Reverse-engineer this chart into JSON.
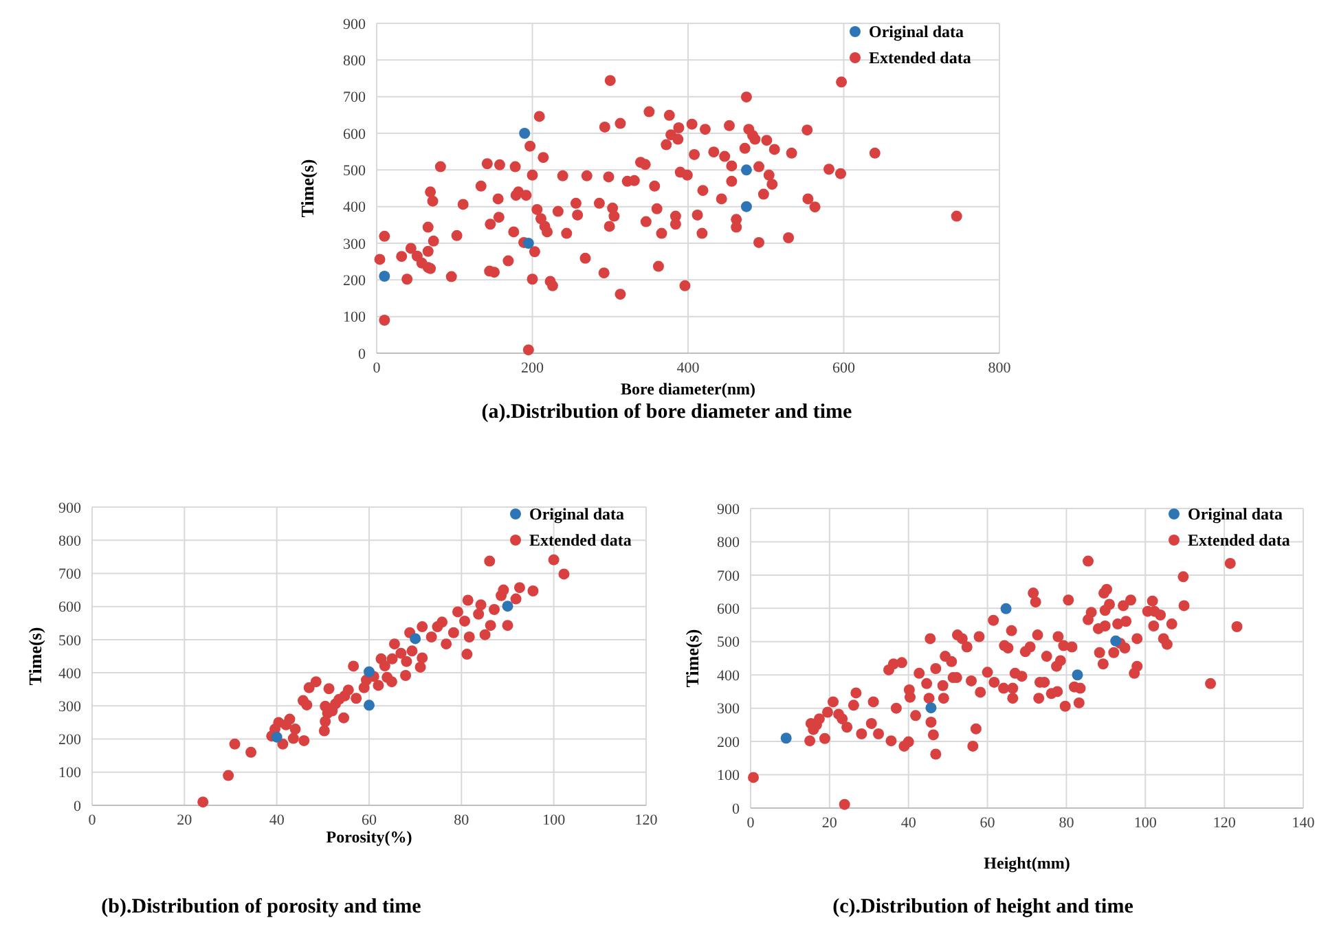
{
  "chart_data": [
    {
      "type": "scatter",
      "title": "(a).Distribution of bore diameter and time",
      "xlabel": "Bore diameter(nm)",
      "ylabel": "Time(s)",
      "xlim": [
        0,
        800
      ],
      "xticks": [
        0,
        200,
        400,
        600,
        800
      ],
      "ylim": [
        0,
        900
      ],
      "yticks": [
        0,
        100,
        200,
        300,
        400,
        500,
        600,
        700,
        800,
        900
      ],
      "grid": true,
      "legend": "top right",
      "marker": "circle",
      "series": [
        {
          "name": "Original data",
          "color": "#2e75b6",
          "x": [
            10,
            190,
            195,
            475,
            475
          ],
          "values": [
            210,
            600,
            300,
            500,
            400
          ]
        },
        {
          "name": "Extended data",
          "color": "#d94141",
          "x": [
            4,
            10,
            10,
            32,
            39,
            44,
            52,
            58,
            66,
            69,
            66,
            66,
            69,
            72,
            73,
            82,
            96,
            103,
            111,
            134,
            142,
            145,
            146,
            151,
            156,
            157,
            158,
            169,
            176,
            178,
            179,
            182,
            192,
            189,
            197,
            195,
            200,
            200,
            203,
            206,
            209,
            211,
            214,
            216,
            219,
            223,
            226,
            233,
            239,
            244,
            256,
            258,
            268,
            270,
            286,
            292,
            293,
            298,
            300,
            299,
            303,
            305,
            313,
            313,
            322,
            331,
            339,
            345,
            346,
            350,
            357,
            360,
            362,
            366,
            372,
            376,
            378,
            384,
            384,
            387,
            388,
            390,
            396,
            399,
            405,
            408,
            412,
            418,
            419,
            422,
            433,
            443,
            447,
            453,
            456,
            456,
            462,
            462,
            473,
            475,
            478,
            483,
            486,
            491,
            491,
            497,
            501,
            504,
            508,
            511,
            529,
            533,
            553,
            554,
            563,
            581,
            596,
            597,
            640,
            745
          ],
          "values": [
            256,
            319,
            90,
            264,
            202,
            286,
            265,
            246,
            234,
            231,
            344,
            278,
            440,
            415,
            306,
            509,
            209,
            321,
            406,
            456,
            517,
            224,
            352,
            221,
            421,
            371,
            514,
            252,
            331,
            509,
            431,
            440,
            431,
            302,
            565,
            9,
            202,
            486,
            277,
            392,
            646,
            367,
            534,
            346,
            331,
            196,
            184,
            387,
            484,
            327,
            409,
            377,
            259,
            484,
            409,
            219,
            617,
            481,
            744,
            346,
            396,
            374,
            627,
            161,
            469,
            471,
            521,
            515,
            359,
            659,
            456,
            394,
            237,
            327,
            569,
            649,
            596,
            374,
            352,
            584,
            615,
            494,
            184,
            486,
            625,
            542,
            377,
            327,
            444,
            611,
            549,
            421,
            537,
            621,
            511,
            469,
            365,
            344,
            559,
            699,
            611,
            594,
            584,
            509,
            302,
            434,
            581,
            486,
            461,
            556,
            315,
            546,
            609,
            421,
            399,
            502,
            490,
            740,
            546,
            374
          ]
        }
      ]
    },
    {
      "type": "scatter",
      "title": "(b).Distribution of porosity and time",
      "xlabel": "Porosity(%)",
      "ylabel": "Time(s)",
      "xlim": [
        0,
        120
      ],
      "xticks": [
        0,
        20,
        40,
        60,
        80,
        100,
        120
      ],
      "ylim": [
        0,
        900
      ],
      "yticks": [
        0,
        100,
        200,
        300,
        400,
        500,
        600,
        700,
        800,
        900
      ],
      "grid": true,
      "legend": "top right",
      "marker": "circle",
      "series": [
        {
          "name": "Original data",
          "color": "#2e75b6",
          "x": [
            40,
            60,
            60,
            70,
            90
          ],
          "values": [
            206,
            403,
            302,
            503,
            601
          ]
        },
        {
          "name": "Extended data",
          "color": "#d94141",
          "x": [
            24,
            29.5,
            30.9,
            34.4,
            38.9,
            39.6,
            40.4,
            41.3,
            42,
            42.8,
            43.6,
            44,
            45.9,
            45.7,
            46.5,
            47,
            48.5,
            51.3,
            50.3,
            50.5,
            50.5,
            51,
            52,
            52.7,
            53.5,
            54.5,
            54.7,
            55.5,
            56.6,
            57.2,
            58.9,
            59.4,
            61,
            62,
            62.6,
            63.4,
            63.9,
            64.9,
            65.5,
            65,
            66.9,
            67.9,
            68.1,
            68.8,
            69.3,
            71.1,
            71.5,
            71.5,
            73.5,
            74.8,
            75.8,
            76.7,
            78.3,
            79.2,
            80.7,
            81.2,
            81.4,
            81.7,
            83.7,
            84.2,
            85.1,
            86.1,
            86.3,
            87.1,
            88.6,
            89.1,
            90,
            91.8,
            92.6,
            95.5,
            100,
            102.2
          ],
          "values": [
            10,
            90,
            185,
            160,
            209,
            230,
            250,
            185,
            243,
            260,
            202,
            230,
            195,
            316,
            303,
            355,
            373,
            352,
            225,
            253,
            299,
            278,
            285,
            306,
            320,
            264,
            330,
            348,
            420,
            323,
            355,
            378,
            389,
            362,
            442,
            421,
            386,
            373,
            487,
            442,
            459,
            392,
            434,
            521,
            466,
            417,
            445,
            539,
            508,
            539,
            553,
            487,
            521,
            584,
            556,
            456,
            619,
            508,
            577,
            605,
            515,
            737,
            543,
            591,
            633,
            650,
            543,
            623,
            657,
            647,
            741,
            698
          ]
        }
      ]
    },
    {
      "type": "scatter",
      "title": "(c).Distribution of height and time",
      "xlabel": "Height(mm)",
      "ylabel": "Time(s)",
      "xlim": [
        0,
        140
      ],
      "xticks": [
        0,
        20,
        40,
        60,
        80,
        100,
        120,
        140
      ],
      "ylim": [
        0,
        900
      ],
      "yticks": [
        0,
        100,
        200,
        300,
        400,
        500,
        600,
        700,
        800,
        900
      ],
      "grid": true,
      "legend": "top right",
      "marker": "circle",
      "series": [
        {
          "name": "Original data",
          "color": "#2e75b6",
          "x": [
            9,
            45.7,
            64.7,
            82.8,
            92.5
          ],
          "values": [
            210,
            301,
            599,
            400,
            502
          ]
        },
        {
          "name": "Extended data",
          "color": "#d94141",
          "x": [
            0.7,
            15,
            15.3,
            15.9,
            16.7,
            17.4,
            18.8,
            19.5,
            20.9,
            22.3,
            23.2,
            24.4,
            23.8,
            26.1,
            26.7,
            28.1,
            30.6,
            31.1,
            32.4,
            35,
            35.6,
            36.2,
            36.9,
            38.3,
            38.9,
            40,
            40.2,
            40.4,
            41.8,
            42.7,
            44.6,
            45.5,
            45.2,
            45.7,
            46.3,
            46.9,
            46.9,
            48.7,
            48.9,
            49.3,
            50.9,
            51.3,
            52.2,
            52.4,
            53.6,
            54.8,
            55.9,
            56.3,
            57.1,
            57.9,
            58.2,
            60,
            61.7,
            61.5,
            64.1,
            64.3,
            65.2,
            66.1,
            66.4,
            66.4,
            67,
            68.7,
            69.6,
            70.8,
            71.6,
            72.2,
            72.7,
            73,
            73.3,
            74.4,
            75,
            76.2,
            77.7,
            77.5,
            77.9,
            78.5,
            79.3,
            79.7,
            80.5,
            81.4,
            82,
            83.5,
            83.2,
            85.5,
            85.5,
            86.3,
            88.1,
            88.4,
            89.3,
            89.8,
            89.8,
            89.5,
            90.2,
            90.9,
            92,
            93,
            93.6,
            94.4,
            94.8,
            95.1,
            96.3,
            97.2,
            97.9,
            97.9,
            100.6,
            101.8,
            102.1,
            102.3,
            103.8,
            104.6,
            105.5,
            106.7,
            109.6,
            109.8,
            116.5,
            121.5,
            123.2
          ],
          "values": [
            92,
            202,
            254,
            236,
            250,
            268,
            209,
            288,
            319,
            282,
            268,
            243,
            11,
            309,
            346,
            223,
            254,
            319,
            223,
            415,
            202,
            433,
            300,
            437,
            186,
            199,
            355,
            333,
            278,
            405,
            374,
            509,
            330,
            258,
            220,
            419,
            162,
            368,
            330,
            456,
            440,
            392,
            392,
            520,
            509,
            484,
            382,
            186,
            238,
            515,
            348,
            408,
            378,
            564,
            360,
            488,
            481,
            533,
            360,
            330,
            405,
            396,
            470,
            484,
            646,
            619,
            520,
            330,
            378,
            378,
            456,
            344,
            350,
            426,
            515,
            443,
            488,
            306,
            625,
            484,
            364,
            360,
            316,
            742,
            566,
            588,
            539,
            467,
            433,
            547,
            594,
            646,
            657,
            612,
            467,
            553,
            495,
            608,
            481,
            561,
            625,
            405,
            426,
            509,
            591,
            622,
            547,
            591,
            580,
            509,
            492,
            553,
            695,
            608,
            374,
            735,
            545
          ]
        }
      ]
    }
  ]
}
